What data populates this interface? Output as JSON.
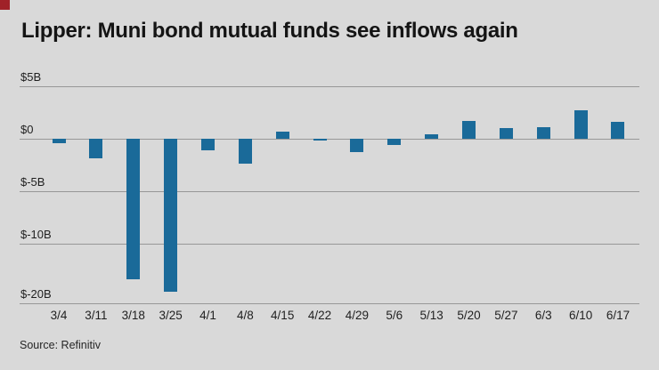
{
  "title": "Lipper: Muni bond mutual funds see inflows again",
  "source": "Source: Refinitiv",
  "colors": {
    "bar": "#1a6a99",
    "background": "#d9d9d9",
    "gridline": "#979797",
    "accent_square": "#a02128",
    "title_text": "#141414",
    "axis_text": "#1f1f1f"
  },
  "chart_data": {
    "type": "bar",
    "title": "Lipper: Muni bond mutual funds see inflows again",
    "xlabel": "",
    "ylabel": "",
    "unit": "billions of US dollars (weekly muni bond mutual fund flows)",
    "categories": [
      "3/4",
      "3/11",
      "3/18",
      "3/25",
      "4/1",
      "4/8",
      "4/15",
      "4/22",
      "4/29",
      "5/6",
      "5/13",
      "5/20",
      "5/27",
      "6/3",
      "6/10",
      "6/17"
    ],
    "values": [
      -0.4,
      -1.9,
      -16,
      -18,
      -1.1,
      -2.4,
      0.7,
      -0.15,
      -1.3,
      -0.6,
      0.4,
      1.7,
      1.0,
      1.1,
      2.7,
      1.6
    ],
    "yticks": [
      {
        "label": "$5B",
        "value": 5
      },
      {
        "label": "$0",
        "value": 0
      },
      {
        "label": "$-5B",
        "value": -5
      },
      {
        "label": "$-10B",
        "value": -10
      },
      {
        "label": "$-20B",
        "value": -20
      }
    ],
    "ylim": [
      -20,
      5
    ],
    "grid": true,
    "legend": false
  }
}
